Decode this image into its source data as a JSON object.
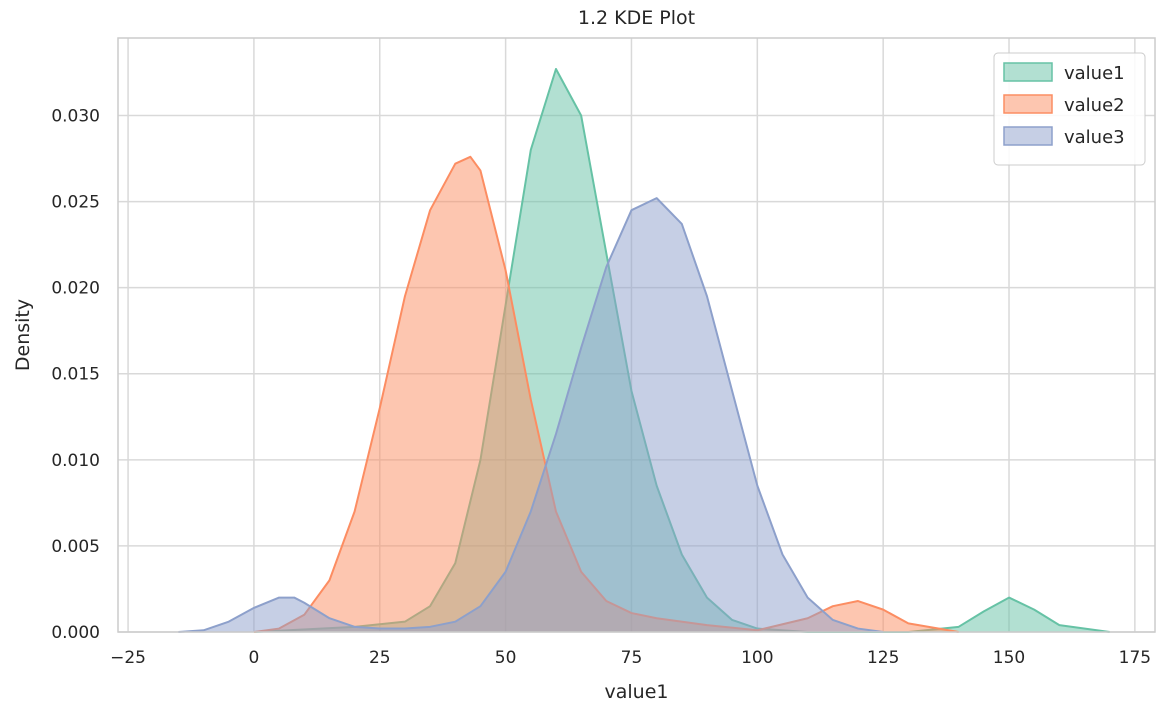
{
  "chart_data": {
    "type": "area",
    "title": "1.2 KDE Plot",
    "xlabel": "value1",
    "ylabel": "Density",
    "xlim": [
      -27,
      179
    ],
    "ylim": [
      0,
      0.0345
    ],
    "xticks": [
      -25,
      0,
      25,
      50,
      75,
      100,
      125,
      150,
      175
    ],
    "xtick_labels": [
      "−25",
      "0",
      "25",
      "50",
      "75",
      "100",
      "125",
      "150",
      "175"
    ],
    "yticks": [
      0,
      0.005,
      0.01,
      0.015,
      0.02,
      0.025,
      0.03
    ],
    "ytick_labels": [
      "0.000",
      "0.005",
      "0.010",
      "0.015",
      "0.020",
      "0.025",
      "0.030"
    ],
    "grid": true,
    "legend_position": "top-right",
    "series": [
      {
        "name": "value1",
        "color": "#66c2a5",
        "x": [
          0,
          20,
          30,
          35,
          40,
          45,
          50,
          55,
          60,
          65,
          70,
          75,
          80,
          85,
          90,
          95,
          100,
          110,
          120,
          130,
          140,
          145,
          150,
          155,
          160,
          170
        ],
        "y": [
          0.0,
          0.0003,
          0.0006,
          0.0015,
          0.004,
          0.01,
          0.019,
          0.028,
          0.0327,
          0.03,
          0.022,
          0.014,
          0.0085,
          0.0045,
          0.002,
          0.0007,
          0.0002,
          0.0,
          0.0,
          0.0,
          0.0003,
          0.0012,
          0.002,
          0.0013,
          0.0004,
          0.0
        ]
      },
      {
        "name": "value2",
        "color": "#fc8d62",
        "x": [
          0,
          5,
          10,
          15,
          20,
          25,
          30,
          35,
          40,
          43,
          45,
          50,
          55,
          60,
          65,
          70,
          75,
          80,
          90,
          100,
          110,
          115,
          120,
          125,
          130,
          140
        ],
        "y": [
          0.0,
          0.0002,
          0.001,
          0.003,
          0.007,
          0.013,
          0.0195,
          0.0245,
          0.0272,
          0.0276,
          0.0268,
          0.021,
          0.0135,
          0.007,
          0.0035,
          0.0018,
          0.0011,
          0.0008,
          0.0004,
          0.0001,
          0.0008,
          0.0015,
          0.0018,
          0.0013,
          0.0005,
          0.0
        ]
      },
      {
        "name": "value3",
        "color": "#8da0cb",
        "x": [
          -15,
          -10,
          -5,
          0,
          5,
          8,
          10,
          15,
          20,
          25,
          30,
          35,
          40,
          45,
          50,
          55,
          60,
          65,
          70,
          75,
          80,
          85,
          90,
          95,
          100,
          105,
          110,
          115,
          120,
          125
        ],
        "y": [
          0.0,
          0.0001,
          0.0006,
          0.0014,
          0.002,
          0.002,
          0.0017,
          0.0008,
          0.0003,
          0.0002,
          0.0002,
          0.0003,
          0.0006,
          0.0015,
          0.0035,
          0.007,
          0.0115,
          0.0165,
          0.0212,
          0.0245,
          0.0252,
          0.0237,
          0.0195,
          0.014,
          0.0085,
          0.0045,
          0.002,
          0.0007,
          0.0002,
          0.0
        ]
      }
    ]
  }
}
